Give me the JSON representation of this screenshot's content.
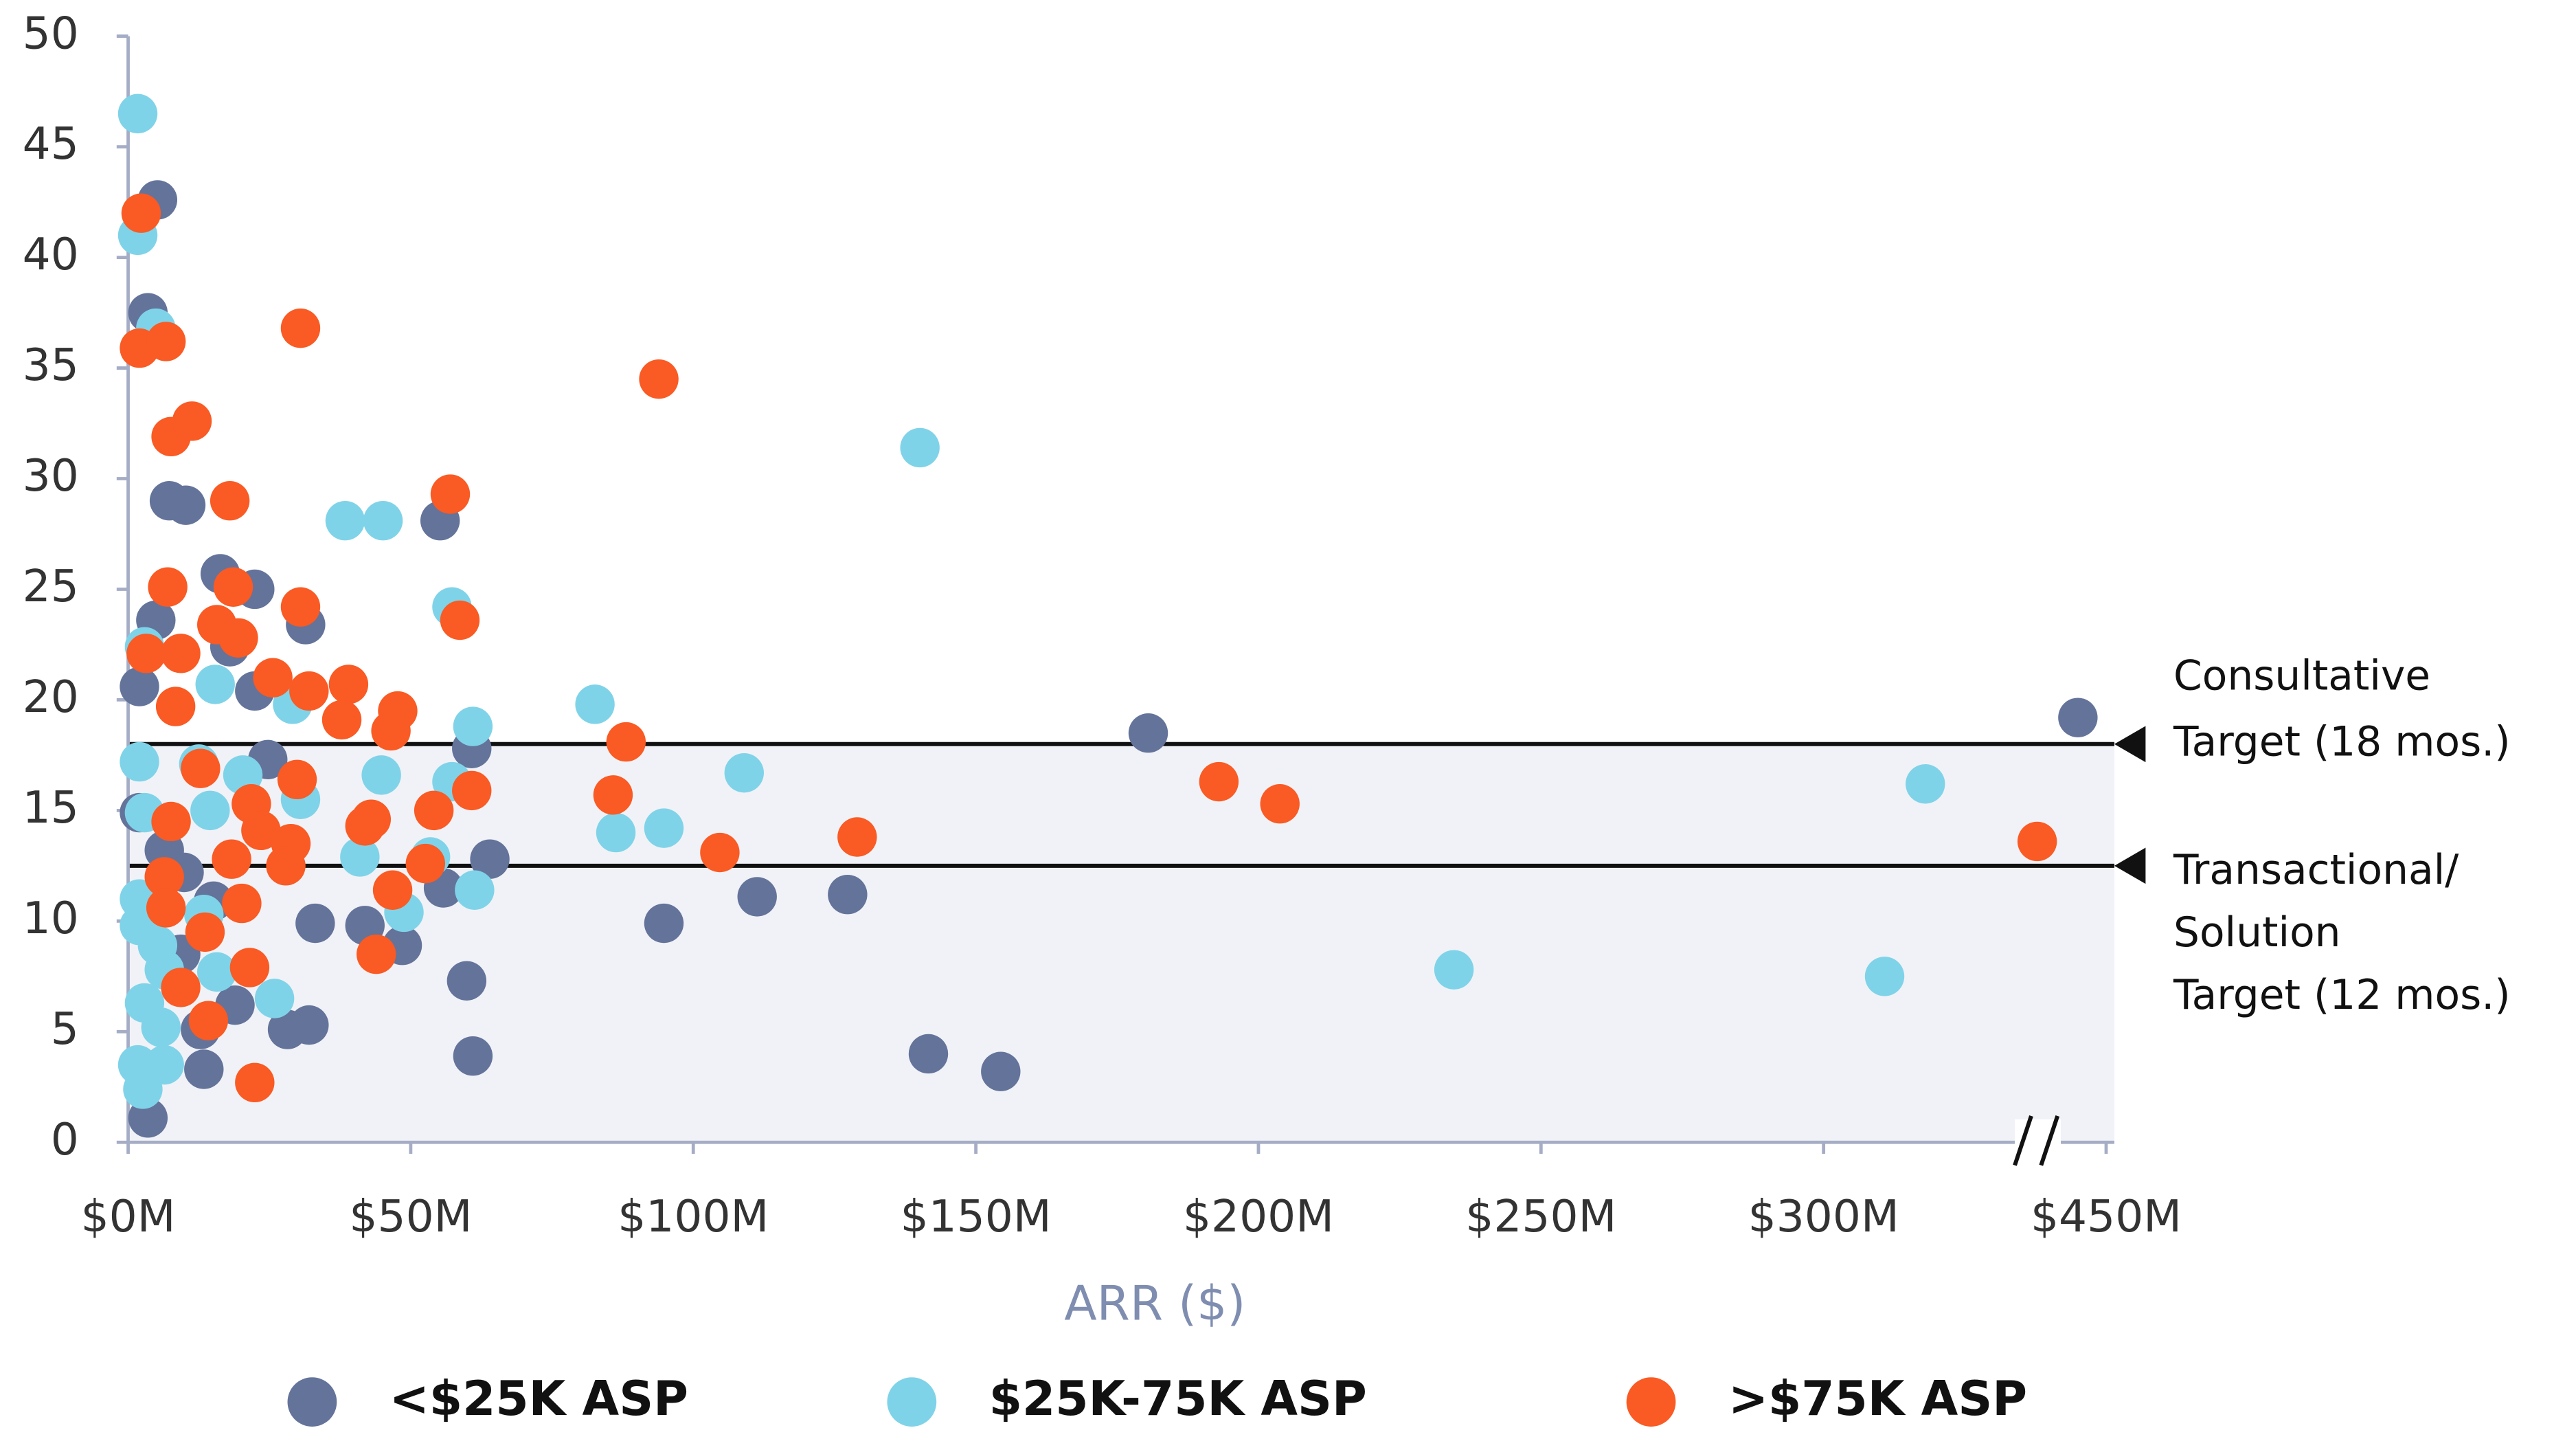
{
  "chart_data": {
    "type": "scatter",
    "x_label": "ARR ($)",
    "xlim": [
      0,
      450
    ],
    "x_break": [
      335,
      435
    ],
    "xticks": [
      {
        "value": 0,
        "label": "$0M"
      },
      {
        "value": 50,
        "label": "$50M"
      },
      {
        "value": 100,
        "label": "$100M"
      },
      {
        "value": 150,
        "label": "$150M"
      },
      {
        "value": 200,
        "label": "$200M"
      },
      {
        "value": 250,
        "label": "$250M"
      },
      {
        "value": 300,
        "label": "$300M"
      },
      {
        "value": 450,
        "label": "$450M"
      }
    ],
    "ylim": [
      0,
      50
    ],
    "yticks": [
      0,
      5,
      10,
      15,
      20,
      25,
      30,
      35,
      40,
      45,
      50
    ],
    "reference_lines": [
      {
        "value": 18,
        "label": [
          "Consultative",
          "Target (18 mos.)"
        ]
      },
      {
        "value": 12.5,
        "label": [
          "Transactional/",
          "Solution",
          "Target (12 mos.)"
        ]
      }
    ],
    "series": [
      {
        "name": "<$25K ASP",
        "color": "#64739a",
        "x": [
          5.2,
          3.5,
          7.3,
          10.2,
          16.3,
          22.4,
          4.9,
          31.4,
          18,
          2,
          22.4,
          55.2,
          24.7,
          60.8,
          2,
          6.4,
          9.9,
          64,
          55.8,
          15.1,
          33.1,
          41.9,
          48.5,
          9.3,
          18.9,
          28.2,
          32,
          12.8,
          13.4,
          59.9,
          61,
          3.5,
          180.5,
          445,
          94.8,
          111.3,
          127.3,
          141.6,
          154.4
        ],
        "values": [
          42.6,
          37.5,
          29,
          28.8,
          25.7,
          25,
          23.6,
          23.4,
          22.4,
          20.6,
          20.4,
          28.1,
          17.3,
          17.8,
          14.9,
          13.2,
          12.2,
          12.8,
          11.5,
          10.9,
          9.9,
          9.8,
          8.9,
          8.5,
          6.2,
          5.1,
          5.3,
          5.1,
          3.3,
          7.3,
          3.9,
          1.1,
          18.5,
          19.2,
          9.9,
          11.1,
          11.2,
          4,
          3.2
        ]
      },
      {
        "name": "$25K-75K ASP",
        "color": "#7fd3e8",
        "x": [
          1.7,
          1.7,
          4.9,
          38.4,
          45.1,
          140.1,
          57.3,
          2.9,
          15.4,
          29.1,
          82.6,
          61,
          2,
          109,
          44.8,
          57.3,
          12.5,
          20.3,
          30.5,
          2.9,
          14.5,
          86.3,
          94.8,
          41,
          53.5,
          2,
          2,
          61.3,
          48.8,
          13.4,
          5.2,
          6.4,
          15.7,
          25.9,
          2.9,
          5.8,
          1.7,
          6.4,
          2.6,
          234.6,
          310.8,
          318
        ],
        "values": [
          46.5,
          41,
          36.8,
          28.1,
          28.1,
          31.4,
          24.2,
          22.4,
          20.7,
          19.8,
          19.8,
          18.8,
          17.2,
          16.7,
          16.6,
          16.3,
          17.1,
          16.6,
          15.5,
          14.9,
          15,
          14,
          14.2,
          12.9,
          12.9,
          11,
          9.8,
          11.4,
          10.4,
          10.3,
          8.9,
          7.8,
          7.7,
          6.5,
          6.3,
          5.2,
          3.5,
          3.5,
          2.4,
          7.8,
          7.5,
          16.2
        ]
      },
      {
        "name": ">$75K ASP",
        "color": "#fa5a23",
        "x": [
          2.3,
          2,
          6.7,
          30.5,
          93.9,
          7.6,
          11.3,
          18,
          57,
          7,
          18.6,
          30.5,
          58.7,
          15.7,
          19.5,
          3.2,
          9.3,
          25.6,
          32,
          39,
          8.4,
          47.7,
          37.8,
          46.5,
          88.1,
          12.8,
          29.9,
          60.8,
          21.8,
          54.1,
          193,
          203.8,
          85.8,
          7.6,
          43,
          41.9,
          23.5,
          28.8,
          18.3,
          27.9,
          104.7,
          129,
          437.8,
          52.6,
          6.4,
          20.1,
          6.7,
          46.8,
          13.6,
          43.9,
          21.5,
          9.3,
          14.2,
          22.4
        ],
        "values": [
          42,
          35.9,
          36.2,
          36.8,
          34.5,
          31.9,
          32.6,
          29,
          29.3,
          25.1,
          25.1,
          24.2,
          23.6,
          23.4,
          22.8,
          22.1,
          22.1,
          21,
          20.4,
          20.7,
          19.7,
          19.5,
          19.1,
          18.6,
          18.1,
          16.9,
          16.4,
          15.9,
          15.3,
          15,
          16.3,
          15.3,
          15.7,
          14.5,
          14.6,
          14.3,
          14.1,
          13.5,
          12.8,
          12.5,
          13.1,
          13.8,
          13.6,
          12.6,
          12,
          10.8,
          10.6,
          11.4,
          9.5,
          8.5,
          7.9,
          7,
          5.5,
          2.7
        ]
      }
    ]
  }
}
